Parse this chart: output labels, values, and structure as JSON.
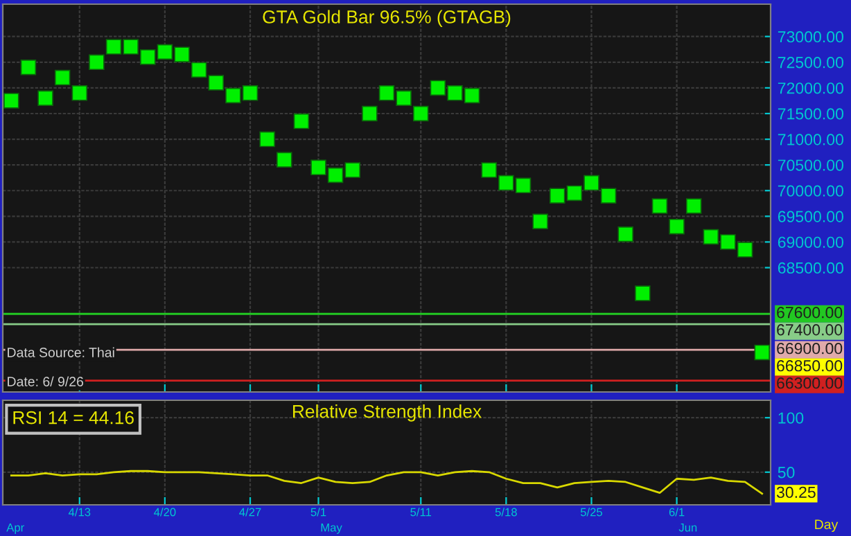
{
  "chart_data": [
    {
      "type": "scatter",
      "title": "GTA Gold Bar 96.5% (GTAGB)",
      "marker": "square",
      "grid": true,
      "tick_labels": "y",
      "categories": [
        null,
        null,
        null,
        null,
        null,
        null,
        null,
        null,
        null,
        null,
        null,
        null,
        null,
        null,
        null,
        null,
        null,
        null,
        null,
        null,
        null,
        null,
        null,
        null,
        null,
        null,
        null,
        null,
        null,
        null,
        null,
        null,
        null,
        null,
        null,
        null,
        null,
        null,
        null,
        null,
        null,
        null,
        null,
        null,
        null
      ],
      "series": [
        {
          "color": "#00f000",
          "values": [
            71750,
            72400,
            71800,
            72200,
            71900,
            72500,
            72800,
            72800,
            72600,
            72700,
            72650,
            72350,
            72100,
            71850,
            71900,
            71000,
            70600,
            71350,
            70450,
            70300,
            70400,
            71500,
            71900,
            71800,
            71500,
            72000,
            71900,
            71850,
            70400,
            70150,
            70100,
            69400,
            69900,
            69950,
            70150,
            69900,
            69150,
            68000,
            69700,
            69300,
            69700,
            69100,
            69000,
            68850,
            66850
          ],
          "value_labels": [
            null,
            null,
            null,
            null,
            null,
            null,
            null,
            null,
            null,
            null,
            null,
            null,
            null,
            null,
            null,
            null,
            null,
            null,
            null,
            null,
            null,
            null,
            null,
            null,
            null,
            null,
            null,
            null,
            null,
            null,
            null,
            null,
            null,
            null,
            null,
            null,
            null,
            null,
            null,
            null,
            null,
            null,
            null,
            null,
            "66850.00"
          ]
        }
      ],
      "ylim": [
        66080,
        73630
      ],
      "yticks": [
        {
          "value": 68500,
          "label": "68500.00"
        },
        {
          "value": 69000,
          "label": "69000.00"
        },
        {
          "value": 69500,
          "label": "69500.00"
        },
        {
          "value": 70000,
          "label": "70000.00"
        },
        {
          "value": 70500,
          "label": "70500.00"
        },
        {
          "value": 71000,
          "label": "71000.00"
        },
        {
          "value": 71500,
          "label": "71500.00"
        },
        {
          "value": 72000,
          "label": "72000.00"
        },
        {
          "value": 72500,
          "label": "72500.00"
        },
        {
          "value": 73000,
          "label": "73000.00"
        }
      ],
      "ref_lines": [
        {
          "axis": "y",
          "value": 67600,
          "label": "67600.00",
          "color": "#22c822"
        },
        {
          "axis": "y",
          "value": 67400,
          "label": "67400.00",
          "color": "#88cc88"
        },
        {
          "axis": "y",
          "value": 66900,
          "label": "66900.00",
          "color": "#e0aaaa"
        },
        {
          "axis": "y",
          "value": 66300,
          "label": "66300.00",
          "color": "#d02020"
        }
      ],
      "annotations": [
        "Data Source: Thai",
        "Date: 6/ 9/26"
      ]
    },
    {
      "type": "line",
      "title": "Relative Strength Index",
      "grid": true,
      "line_style": "solid",
      "categories": [
        null,
        null,
        null,
        null,
        "4/13",
        null,
        null,
        null,
        null,
        "4/20",
        null,
        null,
        null,
        null,
        "4/27",
        null,
        null,
        null,
        "5/1",
        null,
        null,
        null,
        null,
        null,
        "5/11",
        null,
        null,
        null,
        null,
        "5/18",
        null,
        null,
        null,
        null,
        "5/25",
        null,
        null,
        null,
        null,
        "6/1",
        null,
        null,
        null,
        null,
        null
      ],
      "series": [
        {
          "color": "#d8d800",
          "values": [
            47,
            47,
            49,
            47,
            48,
            48,
            50,
            51,
            51,
            50,
            50,
            50,
            49,
            48,
            47,
            47,
            42,
            40,
            45,
            41,
            40,
            41,
            47,
            50,
            50,
            47,
            50,
            51,
            50,
            44,
            40,
            40,
            36,
            40,
            41,
            42,
            41,
            36,
            31,
            44,
            43,
            45,
            42,
            41,
            30.25
          ],
          "value_labels": [
            null,
            null,
            null,
            null,
            null,
            null,
            null,
            null,
            null,
            null,
            null,
            null,
            null,
            null,
            null,
            null,
            null,
            null,
            null,
            null,
            null,
            null,
            null,
            null,
            null,
            null,
            null,
            null,
            null,
            null,
            null,
            null,
            null,
            null,
            null,
            null,
            null,
            null,
            null,
            null,
            null,
            null,
            null,
            null,
            "30.25"
          ]
        }
      ],
      "ylim": [
        20,
        116
      ],
      "yticks": [
        50,
        100
      ],
      "annotations": [
        "RSI 14 = 44.16",
        "Apr",
        "May",
        "Jun",
        "Day"
      ]
    }
  ]
}
